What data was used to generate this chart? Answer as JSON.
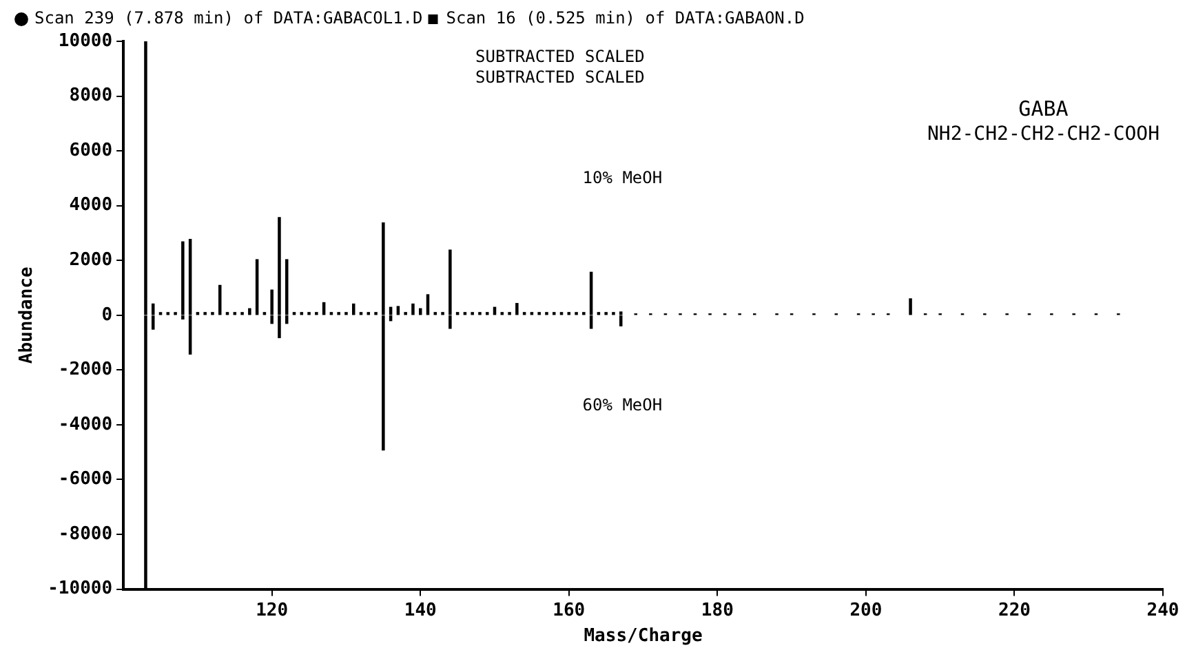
{
  "chart_data": {
    "type": "bar",
    "xlabel": "Mass/Charge",
    "ylabel": "Abundance",
    "x": [
      103,
      104,
      105,
      106,
      107,
      108,
      109,
      110,
      111,
      112,
      113,
      114,
      115,
      116,
      117,
      118,
      119,
      120,
      121,
      122,
      123,
      124,
      125,
      126,
      127,
      128,
      129,
      130,
      131,
      132,
      133,
      134,
      135,
      136,
      137,
      138,
      139,
      140,
      141,
      142,
      143,
      144,
      145,
      146,
      147,
      148,
      149,
      150,
      151,
      152,
      153,
      154,
      155,
      156,
      157,
      158,
      159,
      160,
      161,
      162,
      163,
      164,
      165,
      166,
      167,
      169,
      171,
      173,
      175,
      177,
      179,
      181,
      183,
      185,
      188,
      190,
      193,
      196,
      199,
      201,
      203,
      206,
      208,
      210,
      213,
      216,
      219,
      222,
      225,
      228,
      231,
      234
    ],
    "series": [
      {
        "name": "Scan 239 (7.878 min) of DATA:GABACOL1.D",
        "color": "#000000",
        "marker": "circle",
        "values": [
          10000,
          410,
          100,
          100,
          100,
          2680,
          2770,
          100,
          100,
          100,
          1090,
          100,
          100,
          100,
          240,
          2030,
          100,
          920,
          3570,
          2030,
          100,
          100,
          100,
          100,
          460,
          100,
          100,
          100,
          410,
          100,
          100,
          100,
          3370,
          290,
          320,
          100,
          410,
          240,
          750,
          100,
          100,
          2380,
          100,
          100,
          100,
          100,
          100,
          290,
          100,
          100,
          430,
          100,
          100,
          100,
          100,
          100,
          100,
          100,
          100,
          100,
          1570,
          100,
          100,
          100,
          120,
          50,
          50,
          50,
          50,
          50,
          50,
          50,
          50,
          50,
          50,
          50,
          50,
          50,
          50,
          50,
          50,
          600,
          50,
          50,
          50,
          50,
          50,
          50,
          50,
          50,
          50,
          50
        ]
      },
      {
        "name": "Scan 16 (0.525 min) of DATA:GABAON.D",
        "color": "#000000",
        "marker": "square",
        "values": [
          -10000,
          -510,
          null,
          null,
          null,
          -140,
          -1420,
          null,
          null,
          null,
          null,
          null,
          null,
          null,
          null,
          null,
          null,
          -300,
          -820,
          -300,
          null,
          null,
          null,
          null,
          null,
          null,
          null,
          null,
          null,
          null,
          null,
          null,
          -4920,
          -200,
          null,
          null,
          null,
          null,
          null,
          null,
          null,
          -480,
          null,
          null,
          null,
          null,
          null,
          null,
          null,
          null,
          null,
          null,
          null,
          null,
          null,
          null,
          null,
          null,
          null,
          null,
          -480,
          null,
          null,
          null,
          -390,
          null,
          null,
          null,
          null,
          null,
          null,
          null,
          null,
          null,
          null,
          null,
          null,
          null,
          null,
          null,
          null,
          null,
          null,
          null,
          null,
          null,
          null,
          null,
          null,
          null,
          null,
          null
        ]
      }
    ],
    "xlim": [
      100,
      240
    ],
    "xticks": [
      120,
      140,
      160,
      180,
      200,
      220,
      240
    ],
    "ylim": [
      -10000,
      10000
    ],
    "yticks": [
      -10000,
      -8000,
      -6000,
      -4000,
      -2000,
      0,
      2000,
      4000,
      6000,
      8000,
      10000
    ],
    "grid": false,
    "legend": "top left",
    "annotations": [
      "SUBTRACTED SCALED",
      "SUBTRACTED SCALED",
      "GABA",
      "NH2-CH2-CH2-CH2-COOH",
      "10% MeOH",
      "60% MeOH"
    ]
  }
}
